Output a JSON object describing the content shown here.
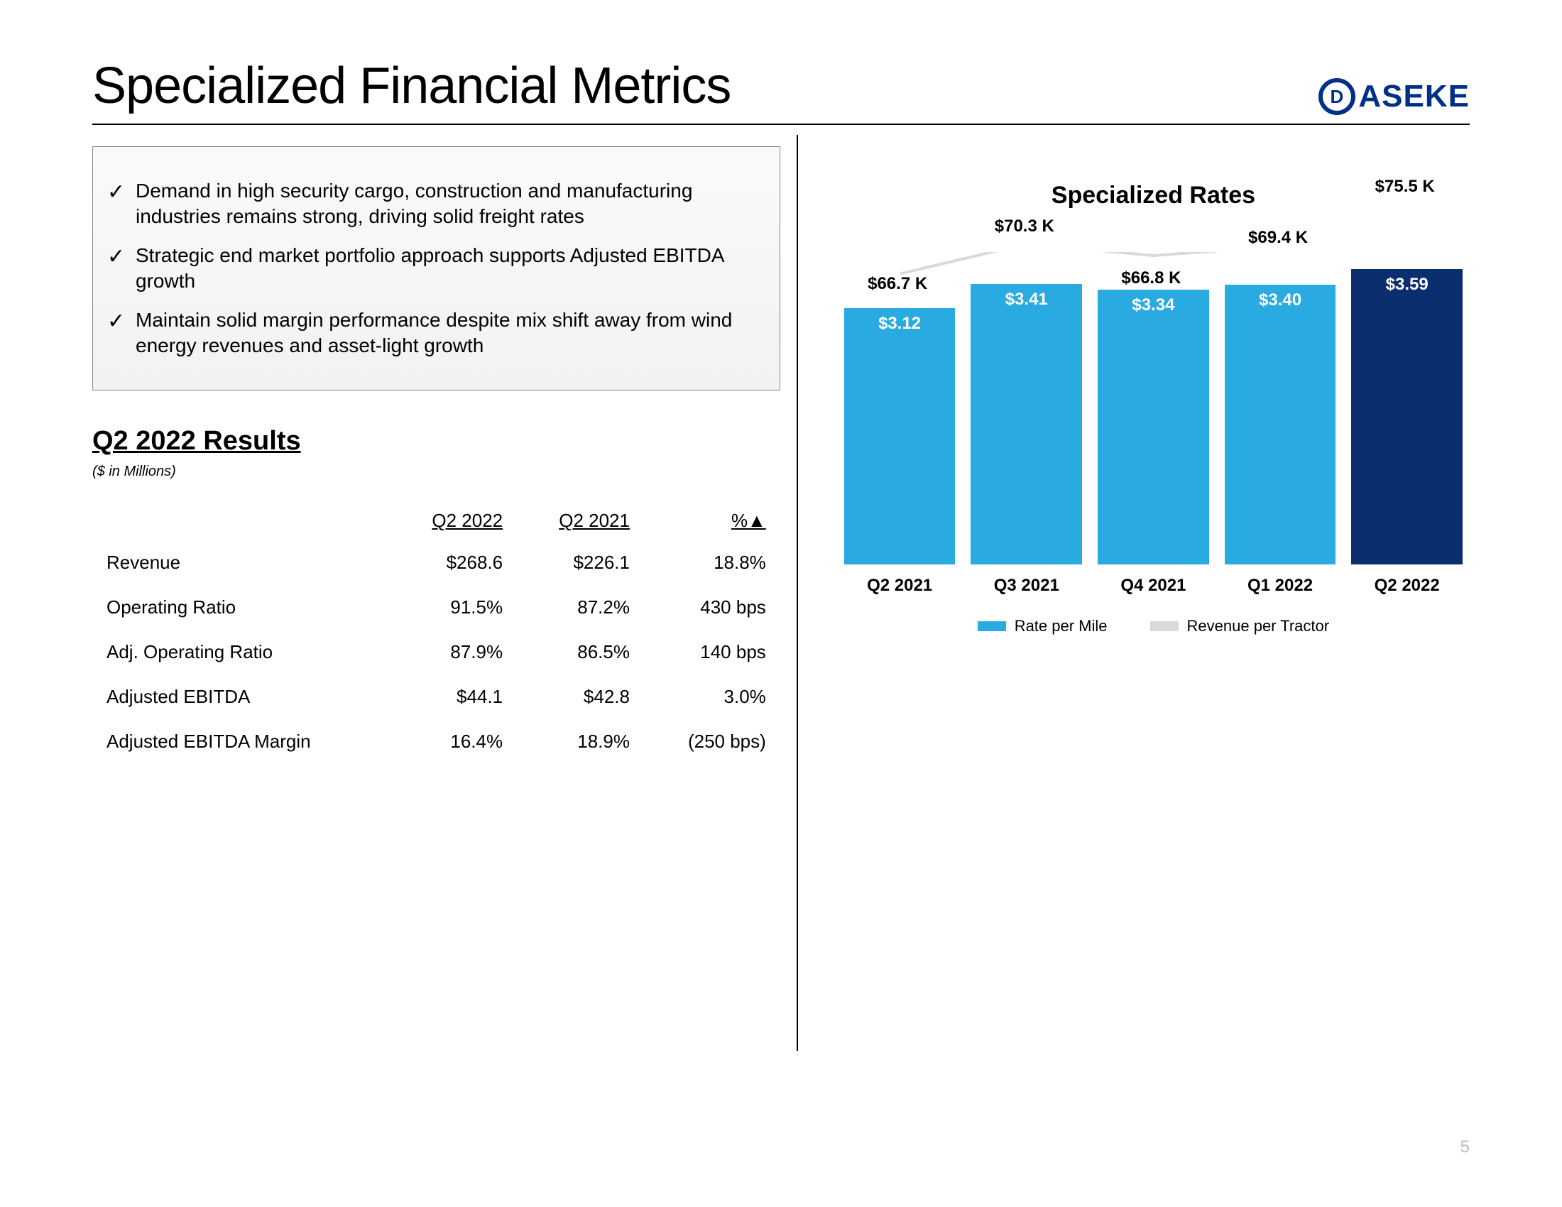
{
  "page": {
    "title": "Specialized Financial Metrics",
    "logo_text": "ASEKE",
    "page_number": "5"
  },
  "bullets": [
    "Demand in high security cargo, construction and manufacturing industries remains strong, driving solid freight rates",
    "Strategic end market portfolio approach supports Adjusted EBITDA growth",
    "Maintain solid margin performance despite mix shift away from wind energy revenues and asset-light growth"
  ],
  "results": {
    "title": "Q2 2022 Results",
    "subtitle": "($ in Millions)",
    "columns": [
      "",
      "Q2 2022",
      "Q2 2021",
      "%▲"
    ],
    "rows": [
      [
        "Revenue",
        "$268.6",
        "$226.1",
        "18.8%"
      ],
      [
        "Operating Ratio",
        "91.5%",
        "87.2%",
        "430 bps"
      ],
      [
        "Adj. Operating Ratio",
        "87.9%",
        "86.5%",
        "140 bps"
      ],
      [
        "Adjusted EBITDA",
        "$44.1",
        "$42.8",
        "3.0%"
      ],
      [
        "Adjusted EBITDA Margin",
        "16.4%",
        "18.9%",
        "(250 bps)"
      ]
    ]
  },
  "chart": {
    "title": "Specialized Rates",
    "type": "bar+line",
    "categories": [
      "Q2 2021",
      "Q3 2021",
      "Q4 2021",
      "Q1 2022",
      "Q2 2022"
    ],
    "rate_per_mile": [
      3.12,
      3.41,
      3.34,
      3.4,
      3.59
    ],
    "rate_labels": [
      "$3.12",
      "$3.41",
      "$3.34",
      "$3.40",
      "$3.59"
    ],
    "revenue_per_tractor": [
      66.7,
      70.3,
      66.8,
      69.4,
      75.5
    ],
    "revenue_labels": [
      "$66.7 K",
      "$70.3 K",
      "$66.8 K",
      "$69.4 K",
      "$75.5 K"
    ],
    "bar_colors": [
      "#29abe2",
      "#29abe2",
      "#29abe2",
      "#29abe2",
      "#0b2e6f"
    ],
    "line_color": "#d9d9d9",
    "bar_ylim_max": 3.8,
    "legend": [
      "Rate per Mile",
      "Revenue per Tractor"
    ],
    "legend_colors": [
      "#29abe2",
      "#d9d9d9"
    ],
    "line_label_y_offsets": [
      -48,
      -95,
      -30,
      -80,
      -130
    ]
  }
}
